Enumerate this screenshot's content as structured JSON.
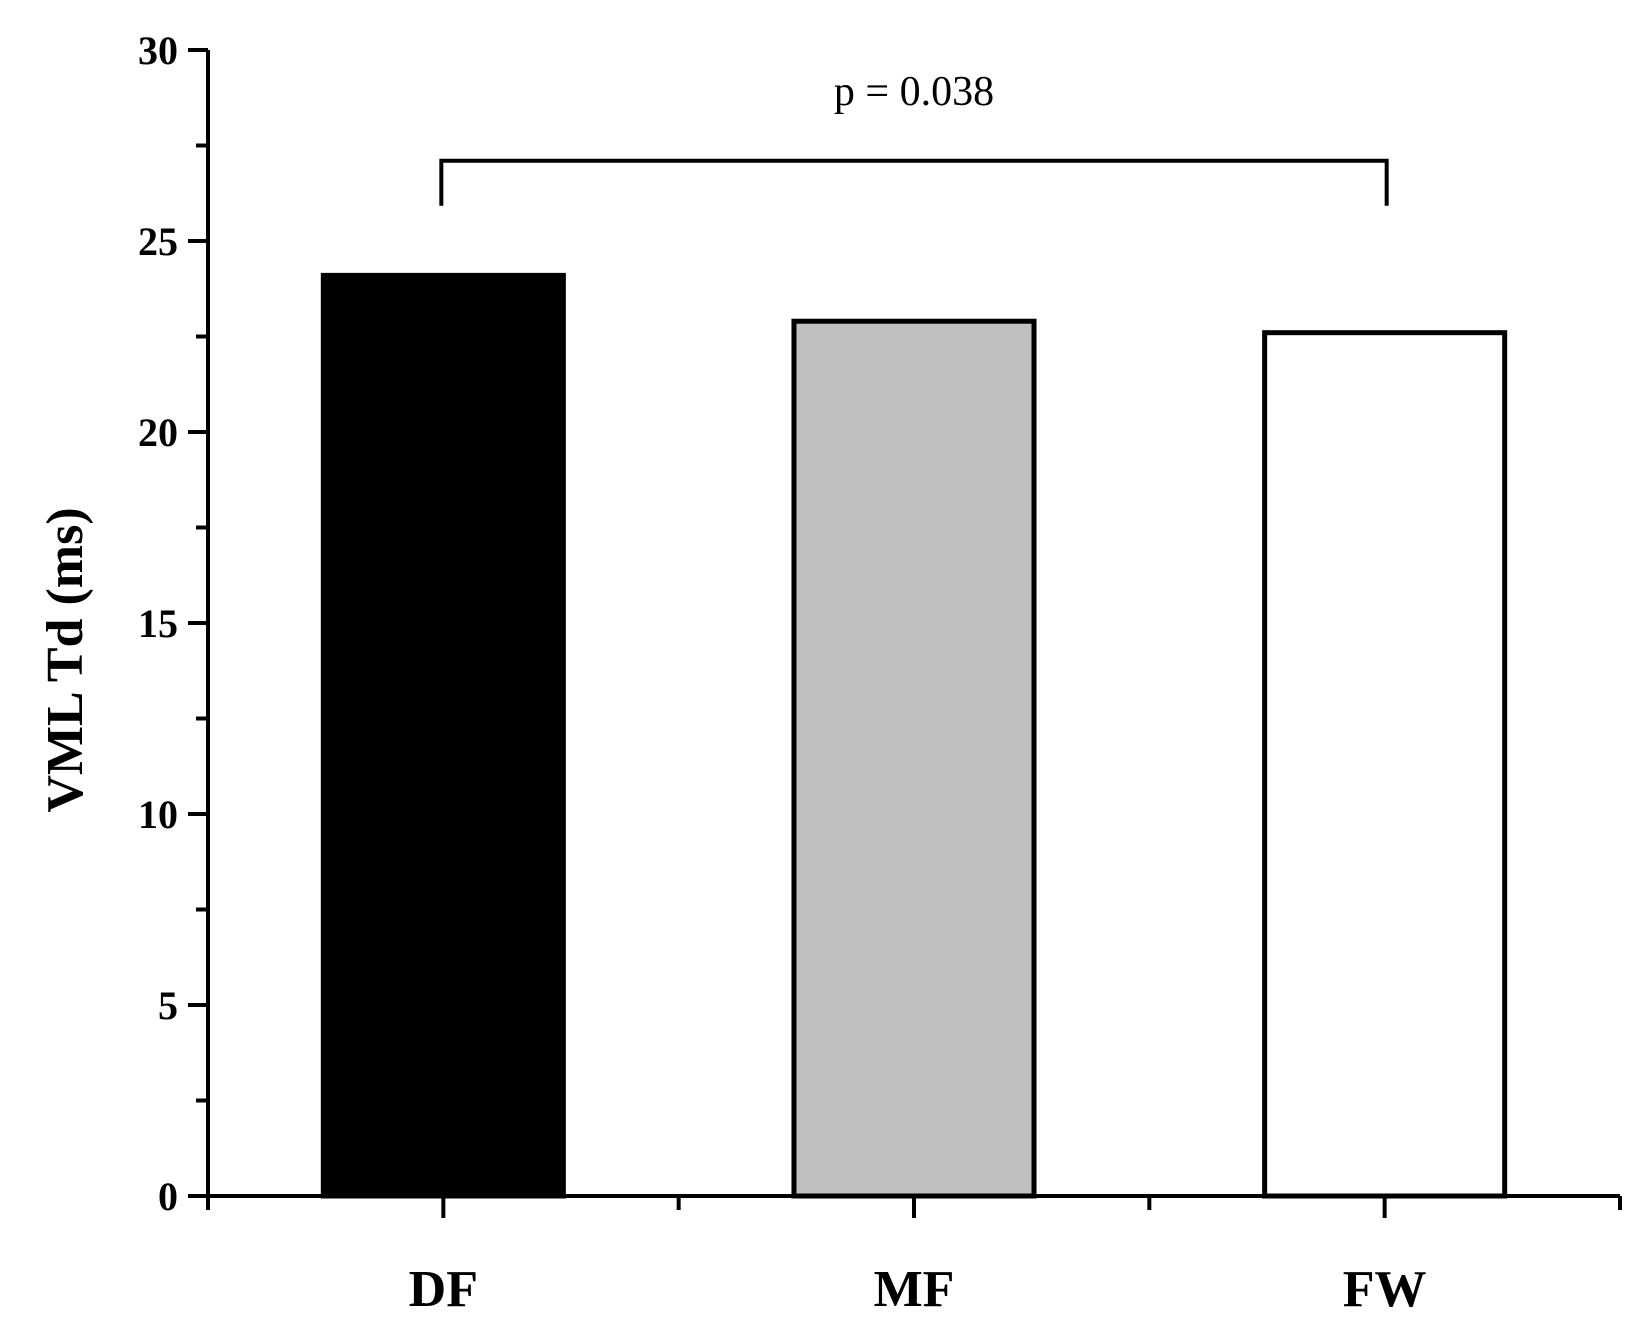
{
  "chart_data": {
    "type": "bar",
    "categories": [
      "DF",
      "MF",
      "FW"
    ],
    "values": [
      24.1,
      22.9,
      22.6
    ],
    "bar_colors": [
      "#000000",
      "#c0c0c0",
      "#ffffff"
    ],
    "ylabel": "VML Td (ms)",
    "xlabel": "",
    "ylim": [
      0,
      30
    ],
    "yticks": [
      "0",
      "5",
      "10",
      "15",
      "20",
      "25",
      "30"
    ],
    "grid": false,
    "annotation": {
      "text": "p = 0.038",
      "from_category": "DF",
      "to_category": "FW",
      "bracket_level": 27.1
    }
  }
}
